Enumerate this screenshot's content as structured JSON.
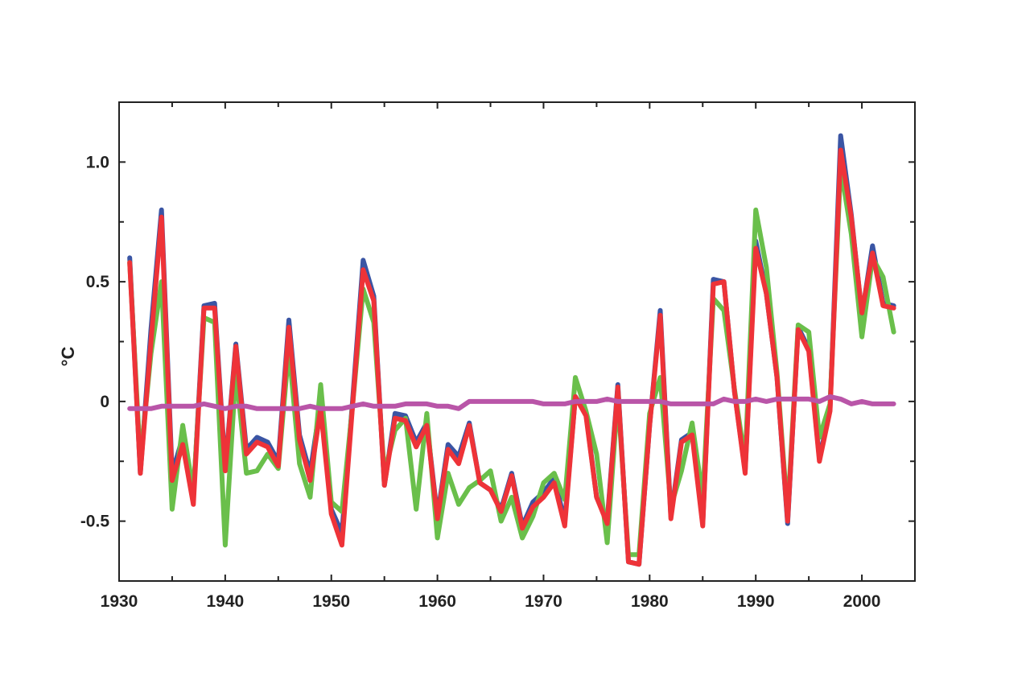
{
  "chart_data": {
    "type": "line",
    "title": "",
    "xlabel": "",
    "ylabel": "°C",
    "xlim": [
      1930,
      2005
    ],
    "ylim": [
      -0.75,
      1.25
    ],
    "xticks": [
      1930,
      1940,
      1950,
      1960,
      1970,
      1980,
      1990,
      2000
    ],
    "xtick_labels": [
      "1930",
      "1940",
      "1950",
      "1960",
      "1970",
      "1980",
      "1990",
      "2000"
    ],
    "yticks": [
      -0.5,
      0,
      0.5,
      1.0
    ],
    "ytick_labels": [
      "-0.5",
      "0",
      "0.5",
      "1.0"
    ],
    "minor_yticks": [
      -0.25,
      0.25,
      0.75
    ],
    "minor_xticks": [
      1935,
      1945,
      1955,
      1965,
      1975,
      1985,
      1995
    ],
    "grid": false,
    "legend": "none",
    "x": [
      1931,
      1932,
      1933,
      1934,
      1935,
      1936,
      1937,
      1938,
      1939,
      1940,
      1941,
      1942,
      1943,
      1944,
      1945,
      1946,
      1947,
      1948,
      1949,
      1950,
      1951,
      1952,
      1953,
      1954,
      1955,
      1956,
      1957,
      1958,
      1959,
      1960,
      1961,
      1962,
      1963,
      1964,
      1965,
      1966,
      1967,
      1968,
      1969,
      1970,
      1971,
      1972,
      1973,
      1974,
      1975,
      1976,
      1977,
      1978,
      1979,
      1980,
      1981,
      1982,
      1983,
      1984,
      1985,
      1986,
      1987,
      1988,
      1989,
      1990,
      1991,
      1992,
      1993,
      1994,
      1995,
      1996,
      1997,
      1998,
      1999,
      2000,
      2001,
      2002,
      2003
    ],
    "series": [
      {
        "color": "#3a55a4",
        "width": 6,
        "values": [
          0.6,
          -0.3,
          0.3,
          0.8,
          -0.3,
          -0.15,
          -0.4,
          0.4,
          0.41,
          -0.28,
          0.24,
          -0.2,
          -0.15,
          -0.17,
          -0.25,
          0.34,
          -0.14,
          -0.3,
          0.0,
          -0.45,
          -0.55,
          0.0,
          0.59,
          0.44,
          -0.35,
          -0.05,
          -0.06,
          -0.17,
          -0.09,
          -0.48,
          -0.18,
          -0.23,
          -0.09,
          -0.34,
          -0.37,
          -0.45,
          -0.3,
          -0.52,
          -0.42,
          -0.38,
          -0.32,
          -0.5,
          0.02,
          -0.05,
          -0.4,
          -0.5,
          0.07,
          -0.67,
          -0.68,
          -0.1,
          0.38,
          -0.48,
          -0.16,
          -0.13,
          -0.51,
          0.51,
          0.5,
          0.04,
          -0.29,
          0.67,
          0.45,
          0.1,
          -0.51,
          0.31,
          0.22,
          -0.24,
          -0.03,
          1.11,
          0.78,
          0.36,
          0.65,
          0.41,
          0.4
        ]
      },
      {
        "color": "#6abf4b",
        "width": 6,
        "values": [
          0.58,
          -0.25,
          0.2,
          0.5,
          -0.45,
          -0.1,
          -0.38,
          0.35,
          0.33,
          -0.6,
          0.13,
          -0.3,
          -0.29,
          -0.22,
          -0.28,
          0.22,
          -0.26,
          -0.4,
          0.07,
          -0.42,
          -0.46,
          -0.02,
          0.47,
          0.33,
          -0.3,
          -0.12,
          -0.07,
          -0.45,
          -0.05,
          -0.57,
          -0.3,
          -0.43,
          -0.36,
          -0.33,
          -0.29,
          -0.5,
          -0.4,
          -0.57,
          -0.48,
          -0.34,
          -0.3,
          -0.41,
          0.1,
          -0.04,
          -0.22,
          -0.59,
          0.02,
          -0.64,
          -0.64,
          -0.05,
          0.1,
          -0.44,
          -0.29,
          -0.09,
          -0.4,
          0.43,
          0.38,
          0.05,
          -0.25,
          0.8,
          0.56,
          0.12,
          -0.47,
          0.32,
          0.29,
          -0.15,
          -0.01,
          0.98,
          0.7,
          0.27,
          0.6,
          0.52,
          0.29
        ]
      },
      {
        "color": "#ee3338",
        "width": 6,
        "values": [
          0.58,
          -0.3,
          0.25,
          0.77,
          -0.33,
          -0.18,
          -0.43,
          0.39,
          0.39,
          -0.29,
          0.23,
          -0.22,
          -0.17,
          -0.19,
          -0.27,
          0.31,
          -0.16,
          -0.33,
          -0.03,
          -0.47,
          -0.6,
          -0.02,
          0.55,
          0.42,
          -0.35,
          -0.07,
          -0.08,
          -0.19,
          -0.1,
          -0.49,
          -0.2,
          -0.26,
          -0.1,
          -0.34,
          -0.37,
          -0.46,
          -0.31,
          -0.53,
          -0.44,
          -0.4,
          -0.34,
          -0.52,
          0.02,
          -0.06,
          -0.4,
          -0.51,
          0.06,
          -0.67,
          -0.68,
          -0.1,
          0.36,
          -0.49,
          -0.17,
          -0.14,
          -0.52,
          0.49,
          0.5,
          0.04,
          -0.3,
          0.64,
          0.45,
          0.1,
          -0.5,
          0.3,
          0.21,
          -0.25,
          -0.04,
          1.05,
          0.77,
          0.37,
          0.62,
          0.4,
          0.39
        ]
      },
      {
        "color": "#b955a8",
        "width": 6,
        "values": [
          -0.03,
          -0.03,
          -0.03,
          -0.02,
          -0.02,
          -0.02,
          -0.02,
          -0.01,
          -0.02,
          -0.03,
          -0.02,
          -0.02,
          -0.03,
          -0.03,
          -0.03,
          -0.03,
          -0.03,
          -0.02,
          -0.03,
          -0.03,
          -0.03,
          -0.02,
          -0.01,
          -0.02,
          -0.02,
          -0.02,
          -0.01,
          -0.01,
          -0.01,
          -0.02,
          -0.02,
          -0.03,
          0.0,
          0.0,
          0.0,
          0.0,
          0.0,
          0.0,
          0.0,
          -0.01,
          -0.01,
          -0.01,
          0.0,
          0.0,
          0.0,
          0.01,
          0.0,
          0.0,
          0.0,
          0.0,
          0.0,
          -0.01,
          -0.01,
          -0.01,
          -0.01,
          -0.01,
          0.01,
          0.0,
          0.0,
          0.01,
          0.0,
          0.01,
          0.01,
          0.01,
          0.01,
          0.0,
          0.02,
          0.01,
          -0.01,
          0.0,
          -0.01,
          -0.01,
          -0.01
        ]
      }
    ]
  }
}
